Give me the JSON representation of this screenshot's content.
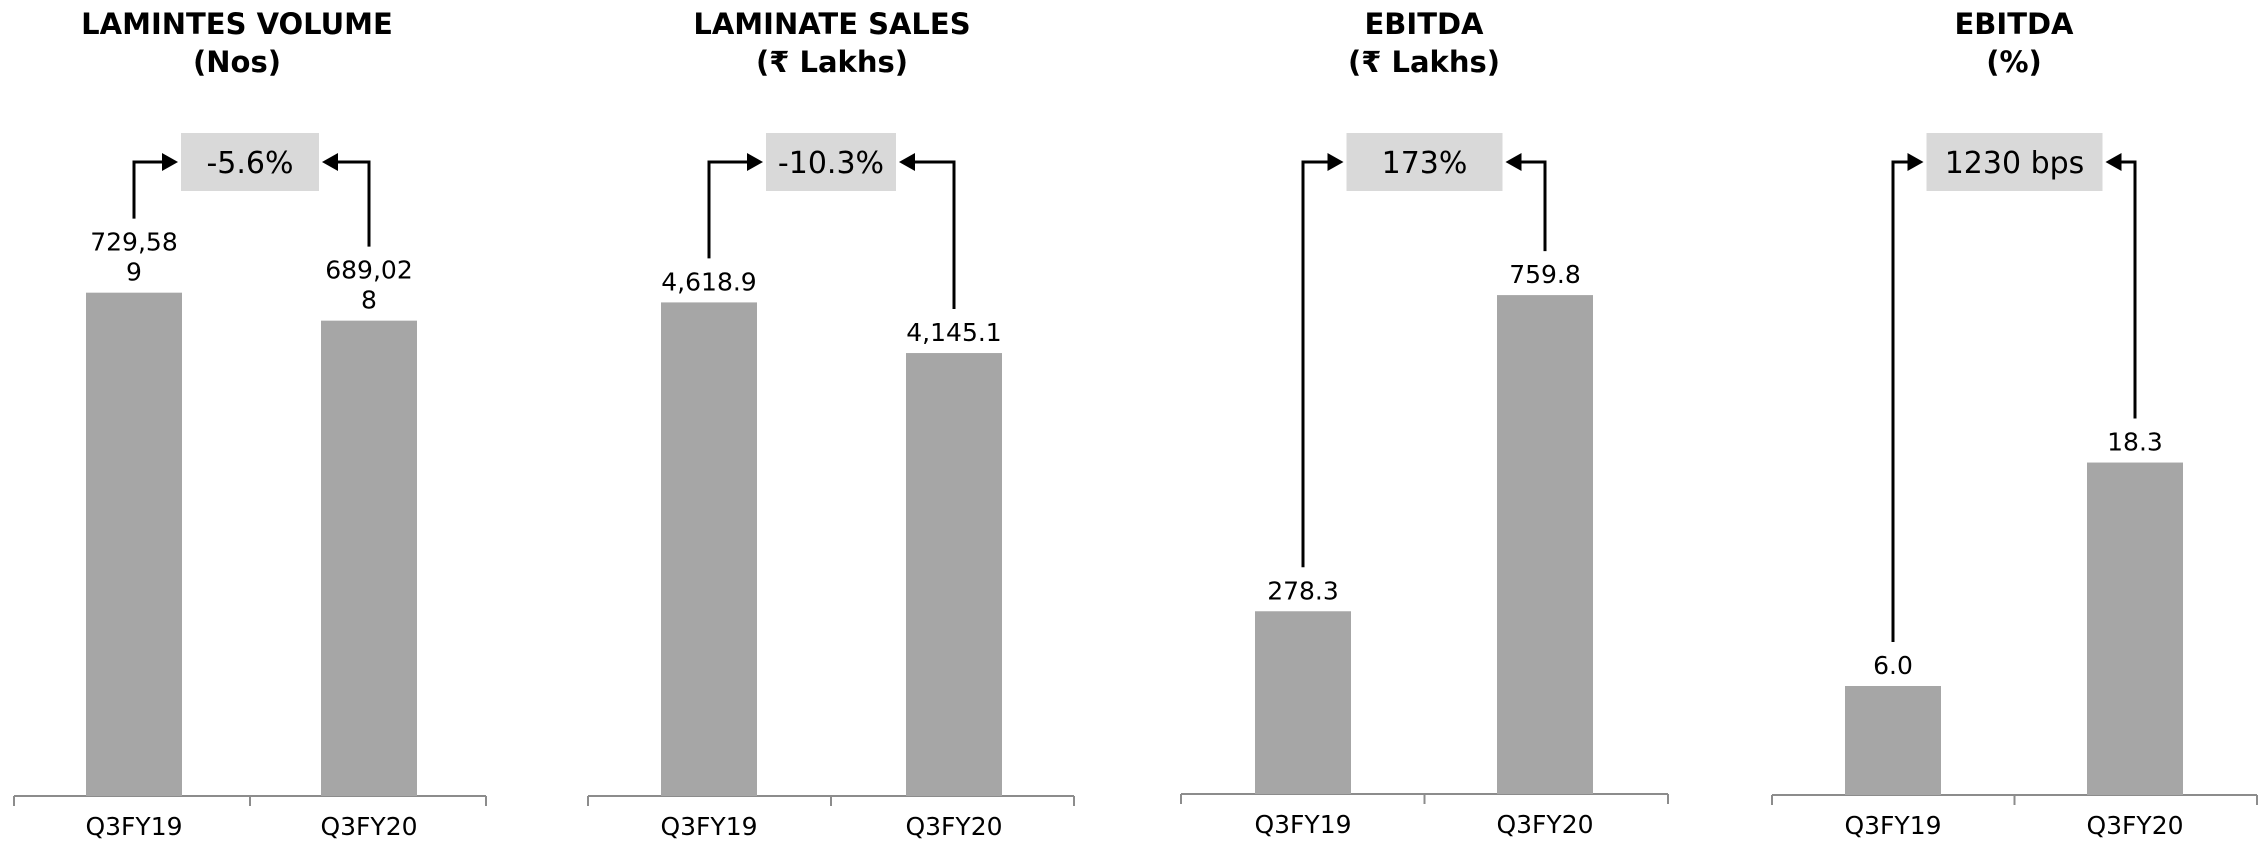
{
  "colors": {
    "bar": "#a6a6a6",
    "change_box": "#d9d9d9",
    "axis": "#8c8c8c",
    "arrow": "#000000"
  },
  "chart_data": [
    {
      "type": "bar",
      "title_lines": [
        "LAMINTES VOLUME",
        "(Nos)"
      ],
      "categories": [
        "Q3FY19",
        "Q3FY20"
      ],
      "values": [
        729589,
        689028
      ],
      "data_labels": [
        [
          "729,58",
          "9"
        ],
        [
          "689,02",
          "8"
        ]
      ],
      "change": "-5.6%",
      "ylim": [
        0,
        790000
      ]
    },
    {
      "type": "bar",
      "title_lines": [
        "LAMINATE SALES",
        "(₹ Lakhs)"
      ],
      "categories": [
        "Q3FY19",
        "Q3FY20"
      ],
      "values": [
        4618.9,
        4145.1
      ],
      "data_labels": [
        [
          "4,618.9"
        ],
        [
          "4,145.1"
        ]
      ],
      "change": "-10.3%",
      "ylim": [
        0,
        5100
      ]
    },
    {
      "type": "bar",
      "title_lines": [
        "EBITDA",
        "(₹ Lakhs)"
      ],
      "categories": [
        "Q3FY19",
        "Q3FY20"
      ],
      "values": [
        278.3,
        759.8
      ],
      "data_labels": [
        [
          "278.3"
        ],
        [
          "759.8"
        ]
      ],
      "change": "173%",
      "ylim": [
        0,
        830
      ]
    },
    {
      "type": "bar",
      "title_lines": [
        "EBITDA",
        "(%)"
      ],
      "categories": [
        "Q3FY19",
        "Q3FY20"
      ],
      "values": [
        6.0,
        18.3
      ],
      "data_labels": [
        [
          "6.0"
        ],
        [
          "18.3"
        ]
      ],
      "change": "1230 bps",
      "ylim": [
        0,
        30
      ]
    }
  ]
}
